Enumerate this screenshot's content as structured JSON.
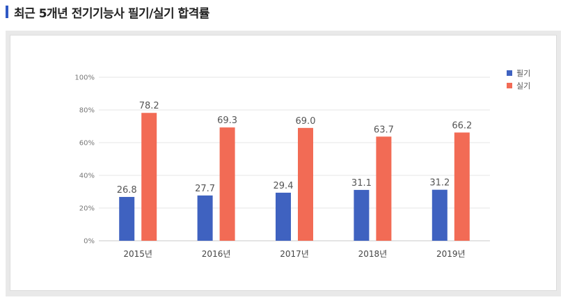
{
  "header": {
    "title": "최근 5개년 전기기능사 필기/실기 합격률",
    "accent_color": "#2f58c4"
  },
  "chart_data": {
    "type": "bar",
    "title": "",
    "xlabel": "",
    "ylabel": "",
    "categories": [
      "2015년",
      "2016년",
      "2017년",
      "2018년",
      "2019년"
    ],
    "ylim": [
      0,
      100
    ],
    "yticks": [
      "0%",
      "20%",
      "40%",
      "60%",
      "80%",
      "100%"
    ],
    "yticks_values": [
      0,
      20,
      40,
      60,
      80,
      100
    ],
    "grid": true,
    "legend_position": "top-right",
    "series": [
      {
        "name": "필기",
        "color": "#3f62c0",
        "values": [
          26.8,
          27.7,
          29.4,
          31.1,
          31.2
        ],
        "labels": [
          "26.8",
          "27.7",
          "29.4",
          "31.1",
          "31.2"
        ]
      },
      {
        "name": "실기",
        "color": "#f26b55",
        "values": [
          78.2,
          69.3,
          69.0,
          63.7,
          66.2
        ],
        "labels": [
          "78.2",
          "69.3",
          "69.0",
          "63.7",
          "66.2"
        ]
      }
    ]
  }
}
